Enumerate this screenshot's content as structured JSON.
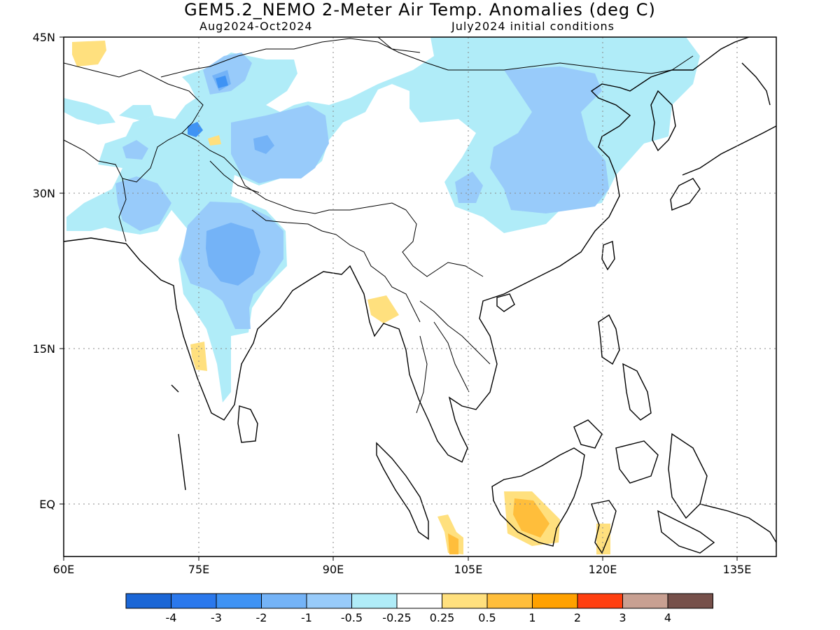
{
  "header": {
    "title": "GEM5.2_NEMO 2-Meter Air Temp. Anomalies (deg C)",
    "period": "Aug2024-Oct2024",
    "init": "July2024 initial conditions"
  },
  "map": {
    "lon_range": [
      60,
      140
    ],
    "lat_range": [
      -6,
      45
    ],
    "lon_labels": [
      "60E",
      "75E",
      "90E",
      "105E",
      "120E",
      "135E"
    ],
    "lat_labels": [
      "45N",
      "30N",
      "15N",
      "EQ"
    ],
    "grid": "dotted"
  },
  "colorbar": {
    "colors": [
      "#1a66d6",
      "#2a78ec",
      "#3f93f4",
      "#74b3f7",
      "#98cbfa",
      "#b0ecf8",
      "#ffffff",
      "#ffe07e",
      "#ffbe3b",
      "#ffa100",
      "#ff3f10",
      "#c8a092",
      "#76504a"
    ],
    "labels": [
      "-4",
      "-3",
      "-2",
      "-1",
      "-0.5",
      "-0.25",
      "0.25",
      "0.5",
      "1",
      "2",
      "3",
      "4"
    ]
  },
  "colors": {
    "cool_light": "#b0ecf8",
    "cool_mid": "#98cbfa",
    "cool_strong": "#74b3f7",
    "cool_deep": "#3f93f4",
    "warm_light": "#ffe07e",
    "warm_mid": "#ffbe3b"
  }
}
